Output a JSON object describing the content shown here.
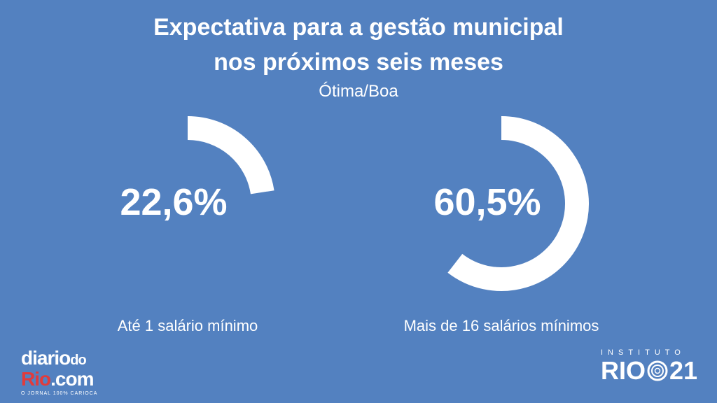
{
  "title_line1": "Expectativa para a gestão municipal",
  "title_line2": "nos próximos seis meses",
  "subtitle": "Ótima/Boa",
  "chart_data": {
    "type": "pie",
    "title": "Expectativa para a gestão municipal nos próximos seis meses",
    "subtitle": "Ótima/Boa",
    "items": [
      {
        "label": "Até 1 salário mínimo",
        "value": 22.6,
        "value_label": "22,6%"
      },
      {
        "label": "Mais de 16 salários mínimos",
        "value": 60.5,
        "value_label": "60,5%"
      }
    ]
  },
  "logo_left": {
    "line1": "diario",
    "line1_small": "do",
    "line2a": "Rio",
    "line2b": ".com",
    "tagline": "O JORNAL 100% CARIOCA"
  },
  "logo_right": {
    "top": "INSTITUTO",
    "left": "RIO",
    "right": "21"
  },
  "colors": {
    "background": "#5381c0",
    "ring": "#ffffff",
    "accent": "#e23b3b"
  }
}
